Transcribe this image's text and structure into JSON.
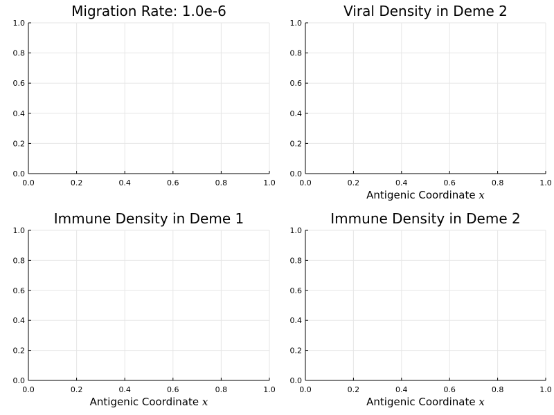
{
  "chart_data": [
    {
      "type": "line",
      "title": "Migration Rate: 1.0e-6",
      "xlabel": "",
      "xlabel_var": "",
      "ylabel": "",
      "xlim": [
        0,
        1
      ],
      "ylim": [
        0,
        1
      ],
      "xticks": [
        "0.0",
        "0.2",
        "0.4",
        "0.6",
        "0.8",
        "1.0"
      ],
      "yticks": [
        "0.0",
        "0.2",
        "0.4",
        "0.6",
        "0.8",
        "1.0"
      ],
      "grid": true,
      "series": []
    },
    {
      "type": "line",
      "title": "Viral Density in Deme 2",
      "xlabel": "Antigenic Coordinate",
      "xlabel_var": "x",
      "ylabel": "",
      "xlim": [
        0,
        1
      ],
      "ylim": [
        0,
        1
      ],
      "xticks": [
        "0.0",
        "0.2",
        "0.4",
        "0.6",
        "0.8",
        "1.0"
      ],
      "yticks": [
        "0.0",
        "0.2",
        "0.4",
        "0.6",
        "0.8",
        "1.0"
      ],
      "grid": true,
      "series": []
    },
    {
      "type": "line",
      "title": "Immune Density in Deme 1",
      "xlabel": "Antigenic Coordinate",
      "xlabel_var": "x",
      "ylabel": "",
      "xlim": [
        0,
        1
      ],
      "ylim": [
        0,
        1
      ],
      "xticks": [
        "0.0",
        "0.2",
        "0.4",
        "0.6",
        "0.8",
        "1.0"
      ],
      "yticks": [
        "0.0",
        "0.2",
        "0.4",
        "0.6",
        "0.8",
        "1.0"
      ],
      "grid": true,
      "series": []
    },
    {
      "type": "line",
      "title": "Immune Density in Deme 2",
      "xlabel": "Antigenic Coordinate",
      "xlabel_var": "x",
      "ylabel": "",
      "xlim": [
        0,
        1
      ],
      "ylim": [
        0,
        1
      ],
      "xticks": [
        "0.0",
        "0.2",
        "0.4",
        "0.6",
        "0.8",
        "1.0"
      ],
      "yticks": [
        "0.0",
        "0.2",
        "0.4",
        "0.6",
        "0.8",
        "1.0"
      ],
      "grid": true,
      "series": []
    }
  ],
  "colors": {
    "axis": "#000000",
    "grid": "#e6e6e6",
    "background": "#ffffff"
  }
}
